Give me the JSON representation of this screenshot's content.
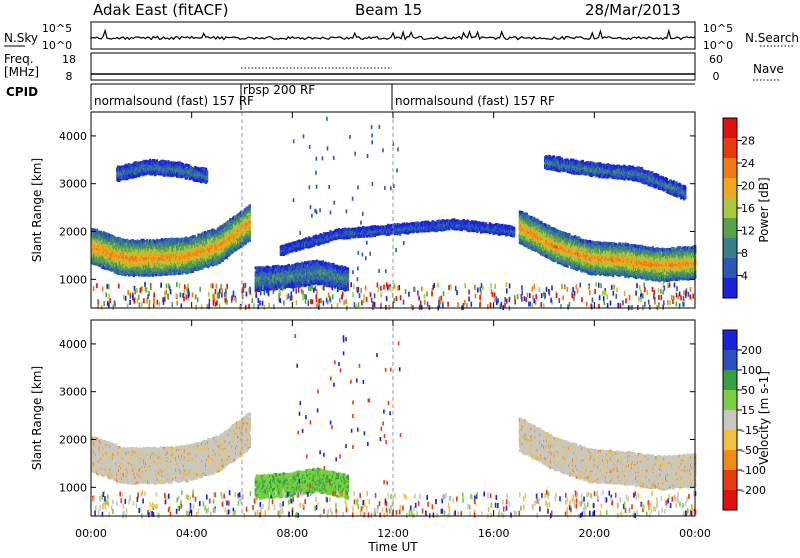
{
  "header": {
    "title": "Adak East (fitACF)",
    "beam": "Beam 15",
    "date": "28/Mar/2013"
  },
  "strips": {
    "nsky_label": "N.Sky",
    "nsearch_label": "N.Search",
    "nsky_ticks": [
      "10^5",
      "10^0"
    ],
    "nsky_right_ticks": [
      "10^5",
      "10^0"
    ],
    "freq_label": "Freq.",
    "freq_unit": "[MHz]",
    "freq_ticks": [
      "18",
      "8"
    ],
    "nave_label": "Nave",
    "nave_ticks": [
      "60",
      "0"
    ],
    "cpid_label": "CPID",
    "cpid_segments": [
      {
        "label": "normalsound (fast) 157 RF",
        "start_h": 0,
        "end_h": 6
      },
      {
        "label": "rbsp 200 RF",
        "start_h": 6,
        "end_h": 12
      },
      {
        "label": "normalsound (fast) 157 RF",
        "start_h": 12,
        "end_h": 24
      }
    ]
  },
  "chart_data": [
    {
      "type": "heatmap",
      "panel": "power",
      "ylabel": "Slant Range [km]",
      "xlim": [
        0,
        24
      ],
      "ylim": [
        400,
        4500
      ],
      "yticks": [
        1000,
        2000,
        3000,
        4000
      ],
      "colorbar": {
        "label": "Power [dB]",
        "ticks": [
          4,
          8,
          12,
          16,
          20,
          24,
          28
        ],
        "range": [
          0,
          32
        ],
        "colors": [
          "#1a23d9",
          "#2b57b5",
          "#3a7f8c",
          "#5aa048",
          "#a9c83a",
          "#f2a61c",
          "#f07a14",
          "#ea3a10",
          "#e01010"
        ]
      },
      "echo_bands": [
        {
          "start_h": 0.0,
          "end_h": 6.3,
          "center_km": [
            1700,
            1450,
            1450,
            1500,
            1700,
            2200
          ],
          "halfwidth_km": 350,
          "level_db": 22
        },
        {
          "start_h": 6.5,
          "end_h": 10.2,
          "center_km": [
            1000,
            1050,
            1150,
            1000
          ],
          "halfwidth_km": 220,
          "level_db": 10
        },
        {
          "start_h": 7.5,
          "end_h": 16.8,
          "center_km": [
            1600,
            1950,
            2050,
            2150,
            2000
          ],
          "halfwidth_km": 80,
          "level_db": 6
        },
        {
          "start_h": 17.0,
          "end_h": 24.0,
          "center_km": [
            2100,
            1700,
            1450,
            1400,
            1300,
            1350
          ],
          "halfwidth_km": 320,
          "level_db": 22
        },
        {
          "start_h": 1.0,
          "end_h": 4.6,
          "center_km": [
            3200,
            3350,
            3300,
            3150
          ],
          "halfwidth_km": 130,
          "level_db": 8
        },
        {
          "start_h": 18.0,
          "end_h": 23.6,
          "center_km": [
            3450,
            3300,
            3200,
            2800
          ],
          "halfwidth_km": 120,
          "level_db": 9
        }
      ]
    },
    {
      "type": "heatmap",
      "panel": "velocity",
      "ylabel": "Slant Range [km]",
      "xlabel": "Time UT",
      "xlim": [
        0,
        24
      ],
      "ylim": [
        400,
        4500
      ],
      "yticks": [
        1000,
        2000,
        3000,
        4000
      ],
      "xticks": [
        "00:00",
        "04:00",
        "08:00",
        "12:00",
        "16:00",
        "20:00",
        "00:00"
      ],
      "colorbar": {
        "label": "Velocity [m s-1]",
        "ticks": [
          200,
          100,
          50,
          15,
          -15,
          -50,
          -100,
          -200
        ],
        "colors": [
          "#1a23d9",
          "#2a4fc0",
          "#35a040",
          "#78d040",
          "#c8c8c0",
          "#f2c040",
          "#f28a18",
          "#ea3a10",
          "#e01010"
        ]
      },
      "echo_bands": [
        {
          "start_h": 0.0,
          "end_h": 6.3,
          "center_km": [
            1700,
            1450,
            1450,
            1500,
            1700,
            2200
          ],
          "halfwidth_km": 350,
          "velocity": 0
        },
        {
          "start_h": 6.5,
          "end_h": 10.2,
          "center_km": [
            1000,
            1050,
            1150,
            1000
          ],
          "halfwidth_km": 220,
          "velocity": 60
        },
        {
          "start_h": 17.0,
          "end_h": 24.0,
          "center_km": [
            2100,
            1700,
            1450,
            1400,
            1300,
            1350
          ],
          "halfwidth_km": 320,
          "velocity": 0
        }
      ]
    }
  ]
}
